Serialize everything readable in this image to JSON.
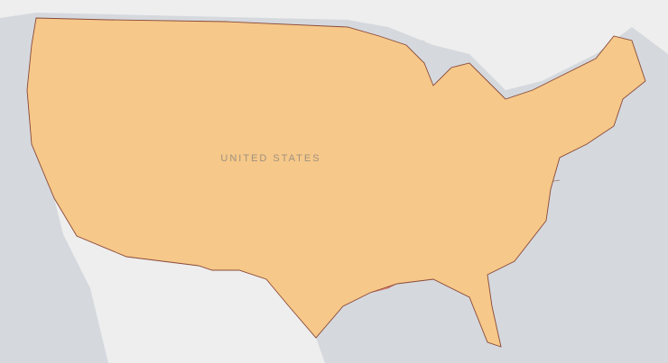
{
  "map": {
    "label": "UNITED STATES"
  }
}
